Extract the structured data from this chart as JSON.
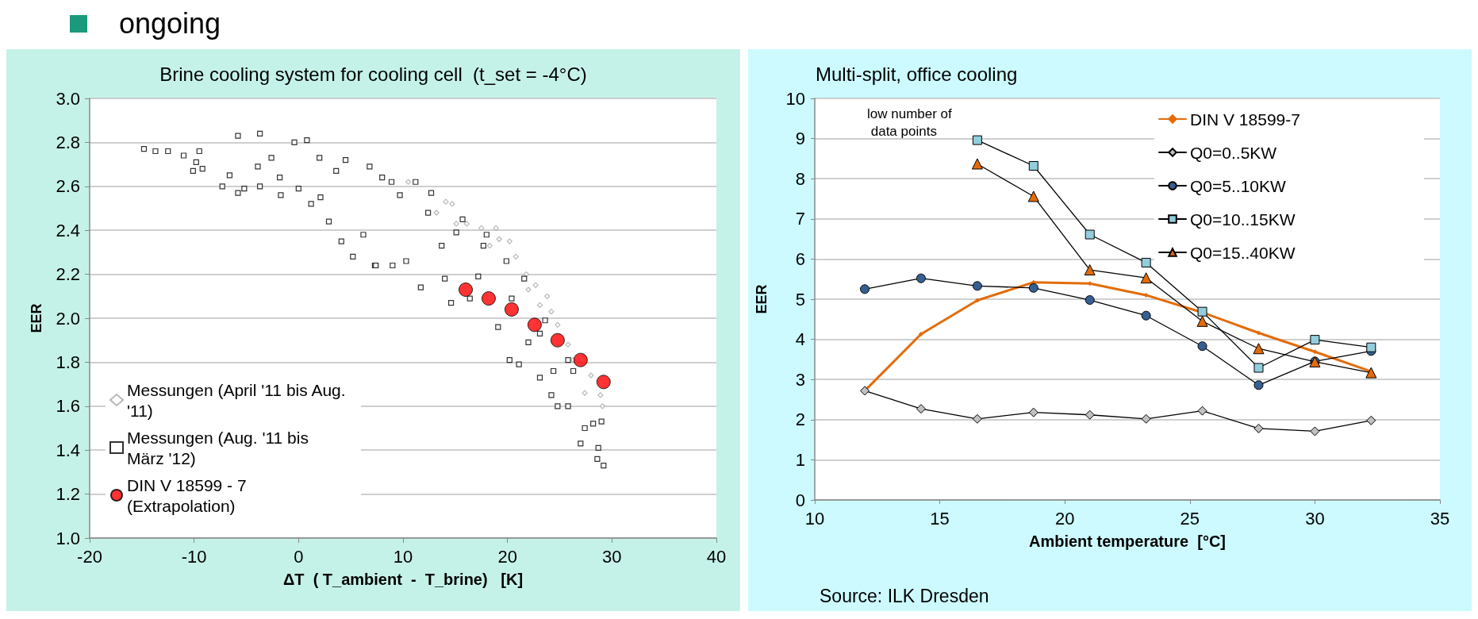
{
  "chart_data": [
    {
      "type": "scatter",
      "title": "Brine cooling system for cooling cell  (t_set = -4°C)",
      "xlabel": "ΔT  ( T_ambient  -  T_brine)   [K]",
      "ylabel": "EER",
      "annotations": [
        "ongoing"
      ],
      "xlim": [
        -20,
        40
      ],
      "xticks": [
        -20,
        -10,
        0,
        10,
        20,
        30,
        40
      ],
      "ylim": [
        1,
        3
      ],
      "yticks": [
        {
          "value": 1,
          "label": "1.0"
        },
        {
          "value": 1.2,
          "label": "1.2"
        },
        {
          "value": 1.4,
          "label": "1.4"
        },
        {
          "value": 1.6,
          "label": "1.6"
        },
        {
          "value": 1.8,
          "label": "1.8"
        },
        {
          "value": 2,
          "label": "2.0"
        },
        {
          "value": 2.2,
          "label": "2.2"
        },
        {
          "value": 2.4,
          "label": "2.4"
        },
        {
          "value": 2.6,
          "label": "2.6"
        },
        {
          "value": 2.8,
          "label": "2.8"
        },
        {
          "value": 3,
          "label": "3.0"
        }
      ],
      "grid": "y",
      "legend": "bottom left",
      "series": [
        {
          "name": "Messungen (April '11 bis Aug. '11)",
          "color": "#a6a6a6",
          "marker": "diamond",
          "x": [
            10.5,
            13.2,
            14.1,
            14.7,
            15.1,
            16.1,
            17.5,
            18.3,
            18.9,
            19.2,
            20.2,
            20.8,
            21.8,
            22,
            22.7,
            23.1,
            23.8,
            24.2,
            24.8,
            25.8,
            26.3,
            27.4,
            28,
            28.9,
            29.1
          ],
          "values": [
            2.62,
            2.48,
            2.53,
            2.52,
            2.43,
            2.43,
            2.41,
            2.33,
            2.41,
            2.36,
            2.35,
            2.28,
            2.2,
            2.13,
            2.15,
            2.06,
            2.1,
            2.03,
            1.97,
            1.88,
            1.81,
            1.66,
            1.74,
            1.65,
            1.6
          ]
        },
        {
          "name": "Messungen (Aug. '11 bis März '12)",
          "color": "#000000",
          "marker": "square",
          "x": [
            -14.8,
            -13.7,
            -12.5,
            -11,
            -10.1,
            -9.8,
            -9.5,
            -9.2,
            -7.3,
            -6.6,
            -5.8,
            -5.8,
            -5.2,
            -3.7,
            -3.7,
            -3.9,
            -2.6,
            -1.8,
            -1.7,
            -0.4,
            0,
            0.8,
            1.2,
            2,
            2.1,
            2.9,
            3.6,
            4.1,
            4.5,
            5.2,
            6.2,
            6.8,
            7.3,
            7.4,
            8,
            8.9,
            9,
            9.7,
            10.3,
            11.2,
            11.7,
            12.4,
            12.7,
            13.7,
            14,
            14.6,
            15.1,
            15.7,
            16.4,
            17.2,
            17.7,
            18,
            19.1,
            19.9,
            20.2,
            20.4,
            21.1,
            21.6,
            22,
            23.1,
            23.1,
            23.6,
            24.2,
            24.4,
            24.8,
            25.8,
            25.8,
            26.3,
            27,
            27.4,
            28.2,
            28.6,
            28.7,
            29,
            29.2
          ],
          "values": [
            2.77,
            2.76,
            2.76,
            2.74,
            2.67,
            2.71,
            2.76,
            2.68,
            2.6,
            2.65,
            2.83,
            2.57,
            2.59,
            2.84,
            2.6,
            2.69,
            2.73,
            2.64,
            2.56,
            2.8,
            2.59,
            2.81,
            2.52,
            2.73,
            2.55,
            2.44,
            2.67,
            2.35,
            2.72,
            2.28,
            2.38,
            2.69,
            2.24,
            2.24,
            2.64,
            2.62,
            2.24,
            2.56,
            2.26,
            2.62,
            2.14,
            2.48,
            2.57,
            2.33,
            2.18,
            2.07,
            2.39,
            2.45,
            2.09,
            2.19,
            2.33,
            2.38,
            1.96,
            2.26,
            1.81,
            2.09,
            1.79,
            2.18,
            1.89,
            1.73,
            1.93,
            1.99,
            1.65,
            1.76,
            1.6,
            1.81,
            1.6,
            1.76,
            1.43,
            1.5,
            1.52,
            1.36,
            1.41,
            1.53,
            1.33
          ]
        },
        {
          "name": "DIN V 18599 - 7 (Extrapolation)",
          "color": "#ff0000",
          "marker": "circle",
          "x": [
            16,
            18.2,
            20.4,
            22.6,
            24.8,
            27,
            29.2
          ],
          "values": [
            2.13,
            2.09,
            2.04,
            1.97,
            1.9,
            1.81,
            1.71
          ]
        }
      ]
    },
    {
      "type": "line",
      "title": "Multi-split, office cooling",
      "xlabel": "Ambient temperature  [°C]",
      "ylabel": "EER",
      "annotations": [
        "low number of data points",
        "Source: ILK Dresden"
      ],
      "xlim": [
        10,
        35
      ],
      "xticks": [
        10,
        15,
        20,
        25,
        30,
        35
      ],
      "ylim": [
        0,
        10
      ],
      "yticks": [
        0,
        1,
        2,
        3,
        4,
        5,
        6,
        7,
        8,
        9,
        10
      ],
      "grid": "y",
      "legend": "top right",
      "x": [
        12,
        14.25,
        16.5,
        18.75,
        21,
        23.25,
        25.5,
        27.75,
        30,
        32.25
      ],
      "series": [
        {
          "name": "DIN V 18599-7",
          "color": "#e36c09",
          "marker": "diamond",
          "values": [
            2.72,
            4.13,
            4.97,
            5.42,
            5.39,
            5.1,
            4.67,
            4.16,
            3.69,
            3.2
          ]
        },
        {
          "name": "Q0=0..5KW",
          "color": "#c0c0c0",
          "marker": "diamond",
          "values": [
            2.72,
            2.27,
            2.02,
            2.18,
            2.12,
            2.02,
            2.22,
            1.78,
            1.71,
            1.98
          ]
        },
        {
          "name": "Q0=5..10KW",
          "color": "#365f91",
          "marker": "circle",
          "values": [
            5.25,
            5.52,
            5.33,
            5.28,
            4.98,
            4.59,
            3.83,
            2.86,
            3.45,
            3.71
          ]
        },
        {
          "name": "Q0=10..15KW",
          "color": "#93cddd",
          "marker": "square",
          "x": [
            16.5,
            18.75,
            21,
            23.25,
            25.5,
            27.75,
            30,
            32.25
          ],
          "values": [
            8.96,
            8.32,
            6.61,
            5.91,
            4.69,
            3.29,
            3.99,
            3.8
          ]
        },
        {
          "name": "Q0=15..40KW",
          "color": "#e36c09",
          "marker": "triangle",
          "x": [
            16.5,
            18.75,
            21,
            23.25,
            25.5,
            27.75,
            30,
            32.25
          ],
          "values": [
            8.37,
            7.56,
            5.73,
            5.53,
            4.45,
            3.77,
            3.44,
            3.17
          ]
        }
      ]
    }
  ]
}
